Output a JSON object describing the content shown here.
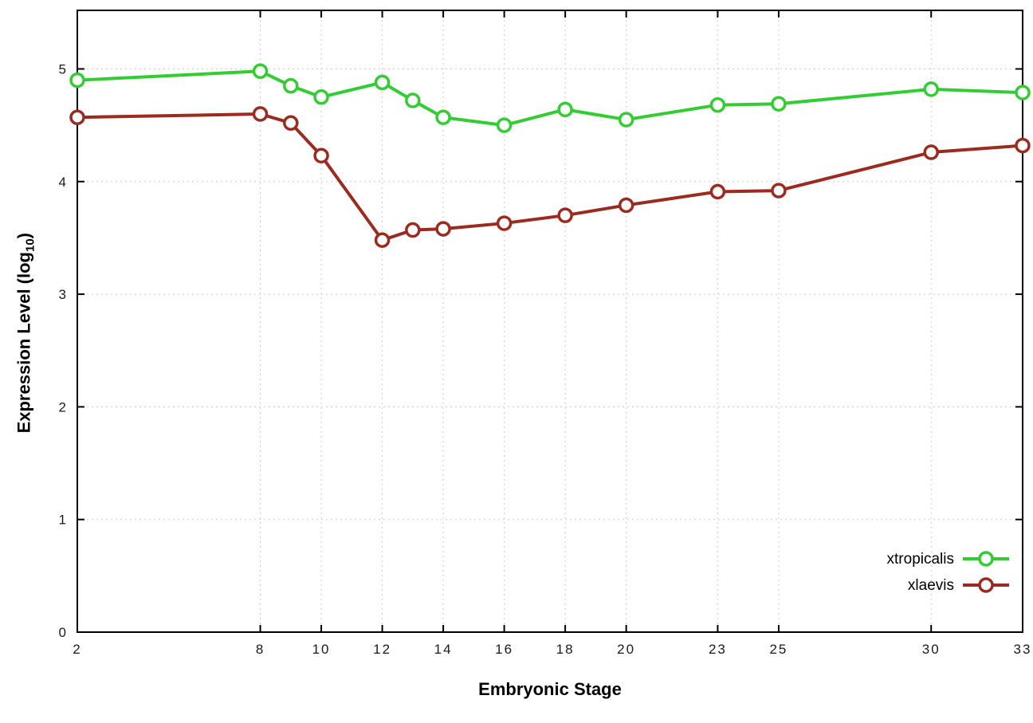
{
  "chart_data": {
    "type": "line",
    "title": "",
    "xlabel": "Embryonic Stage",
    "ylabel_parts": {
      "pre": "Expression Level (log",
      "sub": "10",
      "post": ")"
    },
    "x": [
      2,
      8,
      9,
      10,
      12,
      13,
      14,
      16,
      18,
      20,
      23,
      25,
      30,
      33
    ],
    "series": [
      {
        "name": "xtropicalis",
        "color": "#33cc33",
        "values": [
          4.9,
          4.98,
          4.85,
          4.75,
          4.88,
          4.72,
          4.57,
          4.5,
          4.64,
          4.55,
          4.68,
          4.69,
          4.82,
          4.79
        ]
      },
      {
        "name": "xlaevis",
        "color": "#9b2a1f",
        "values": [
          4.57,
          4.6,
          4.52,
          4.23,
          3.48,
          3.57,
          3.58,
          3.63,
          3.7,
          3.79,
          3.91,
          3.92,
          4.26,
          4.32
        ]
      }
    ],
    "xticks": [
      2,
      8,
      10,
      12,
      14,
      16,
      18,
      20,
      23,
      25,
      30,
      33
    ],
    "yticks": [
      0,
      1,
      2,
      3,
      4,
      5
    ],
    "xlim": [
      2,
      33
    ],
    "ylim": [
      0,
      5.52
    ],
    "grid": true,
    "grid_color": "#cccccc",
    "border_color": "#000000",
    "tick_label_color": "#1a1a1a",
    "legend_position": "bottom-right-inside",
    "marker": "open-circle",
    "legend": [
      "xtropicalis",
      "xlaevis"
    ]
  }
}
